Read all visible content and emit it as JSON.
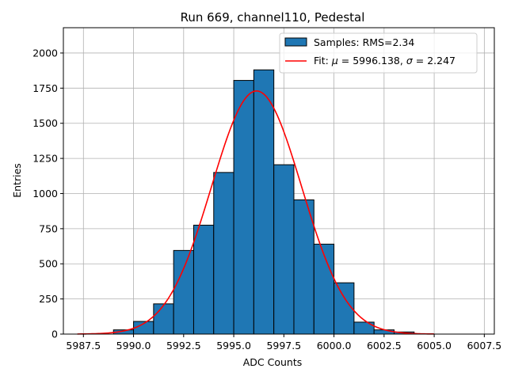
{
  "chart_data": {
    "type": "bar",
    "title": "Run 669, channel110, Pedestal",
    "xlabel": "ADC Counts",
    "ylabel": "Entries",
    "xlim": [
      5986.5,
      6008.0
    ],
    "ylim": [
      0,
      2180
    ],
    "grid": true,
    "legend_position": "top-right",
    "xticks": [
      5987.5,
      5990.0,
      5992.5,
      5995.0,
      5997.5,
      6000.0,
      6002.5,
      6005.0,
      6007.5
    ],
    "xtick_labels": [
      "5987.5",
      "5990.0",
      "5992.5",
      "5995.0",
      "5997.5",
      "6000.0",
      "6002.5",
      "6005.0",
      "6007.5"
    ],
    "yticks": [
      0,
      250,
      500,
      750,
      1000,
      1250,
      1500,
      1750,
      2000
    ],
    "ytick_labels": [
      "0",
      "250",
      "500",
      "750",
      "1000",
      "1250",
      "1500",
      "1750",
      "2000"
    ],
    "histogram": {
      "name": "Samples: RMS=2.34",
      "bin_edges": [
        5989.0,
        5990.0,
        5991.0,
        5992.0,
        5993.0,
        5994.0,
        5995.0,
        5996.0,
        5997.0,
        5998.0,
        5999.0,
        6000.0,
        6001.0,
        6002.0,
        6003.0,
        6004.0
      ],
      "values": [
        30,
        90,
        215,
        595,
        775,
        1150,
        1805,
        1880,
        1205,
        955,
        640,
        365,
        85,
        30,
        15
      ],
      "color": "#1f77b4",
      "edge_color": "#000000"
    },
    "fit": {
      "name_prefix": "Fit: ",
      "mu_symbol": "μ",
      "mu_value": "5996.138",
      "sigma_symbol": "σ",
      "sigma_value": "2.247",
      "mu": 5996.138,
      "sigma": 2.247,
      "amplitude": 1730,
      "x_range": [
        5987.2,
        6005.0
      ],
      "color": "#ff0000"
    }
  }
}
